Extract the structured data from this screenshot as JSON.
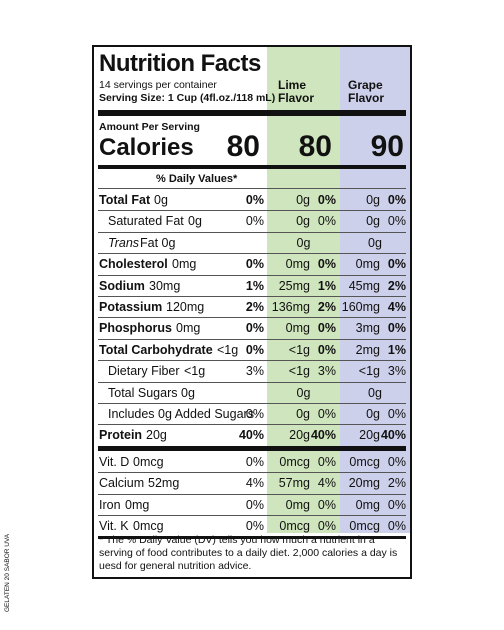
{
  "header": {
    "title": "Nutrition Facts",
    "servings": "14 servings per container",
    "serving_size": "Serving Size: 1 Cup (4fl.oz./118 mL)",
    "columns": [
      "Lime Flavor",
      "Grape Flavor"
    ]
  },
  "calories": {
    "amount_per_serving": "Amount Per Serving",
    "label": "Calories",
    "values": [
      80,
      80,
      90
    ]
  },
  "dv_header": "% Daily Values*",
  "nutrients": [
    {
      "name": "Total Fat",
      "amount": "0g",
      "dv": "0%",
      "lime": [
        "0g",
        "0%"
      ],
      "grape": [
        "0g",
        "0%"
      ],
      "bold": true
    },
    {
      "name": "Saturated Fat",
      "amount": "0g",
      "dv": "0%",
      "lime": [
        "0g",
        "0%"
      ],
      "grape": [
        "0g",
        "0%"
      ],
      "indent": true
    },
    {
      "name": "Trans",
      "amount": "Fat 0g",
      "lime": [
        "0g"
      ],
      "grape": [
        "0g"
      ],
      "indent": true,
      "italic": true
    },
    {
      "name": "Cholesterol",
      "amount": "0mg",
      "dv": "0%",
      "lime": [
        "0mg",
        "0%"
      ],
      "grape": [
        "0mg",
        "0%"
      ],
      "bold": true
    },
    {
      "name": "Sodium",
      "amount": "30mg",
      "dv": "1%",
      "lime": [
        "25mg",
        "1%"
      ],
      "grape": [
        "45mg",
        "2%"
      ],
      "bold": true
    },
    {
      "name": "Potassium",
      "amount": "120mg",
      "dv": "2%",
      "lime": [
        "136mg",
        "2%"
      ],
      "grape": [
        "160mg",
        "4%"
      ],
      "bold": true
    },
    {
      "name": "Phosphorus",
      "amount": "0mg",
      "dv": "0%",
      "lime": [
        "0mg",
        "0%"
      ],
      "grape": [
        "3mg",
        "0%"
      ],
      "bold": true
    },
    {
      "name": "Total Carbohydrate",
      "amount": "<1g",
      "dv": "0%",
      "lime": [
        "<1g",
        "0%"
      ],
      "grape": [
        "2mg",
        "1%"
      ],
      "bold": true
    },
    {
      "name": "Dietary Fiber",
      "amount": "<1g",
      "dv": "3%",
      "lime": [
        "<1g",
        "3%"
      ],
      "grape": [
        "<1g",
        "3%"
      ],
      "indent": true
    },
    {
      "name": "Total Sugars",
      "amount": "0g",
      "lime": [
        "0g"
      ],
      "grape": [
        "0g"
      ],
      "indent": true
    },
    {
      "name": "Includes 0g Added Sugars",
      "dv": "0%",
      "lime": [
        "0g",
        "0%"
      ],
      "grape": [
        "0g",
        "0%"
      ],
      "indent": true
    },
    {
      "name": "Protein",
      "amount": "20g",
      "dv": "40%",
      "lime": [
        "20g",
        "40%"
      ],
      "grape": [
        "20g",
        "40%"
      ],
      "bold": true
    }
  ],
  "vitamins": [
    {
      "name": "Vit. D",
      "amount": "0mcg",
      "dv": "0%",
      "lime": [
        "0mcg",
        "0%"
      ],
      "grape": [
        "0mcg",
        "0%"
      ]
    },
    {
      "name": "Calcium",
      "amount": "52mg",
      "dv": "4%",
      "lime": [
        "57mg",
        "4%"
      ],
      "grape": [
        "20mg",
        "2%"
      ]
    },
    {
      "name": "Iron",
      "amount": "0mg",
      "dv": "0%",
      "lime": [
        "0mg",
        "0%"
      ],
      "grape": [
        "0mg",
        "0%"
      ]
    },
    {
      "name": "Vit. K",
      "amount": "0mcg",
      "dv": "0%",
      "lime": [
        "0mcg",
        "0%"
      ],
      "grape": [
        "0mcg",
        "0%"
      ]
    }
  ],
  "footnote": "* The % Daily Value (DV) tells you how much a nutrient in a serving of food contributes to a daily diet. 2,000 calories a day is uesd for general nutrition advice.",
  "side_text": "GELATEN 20 SABOR UVA"
}
